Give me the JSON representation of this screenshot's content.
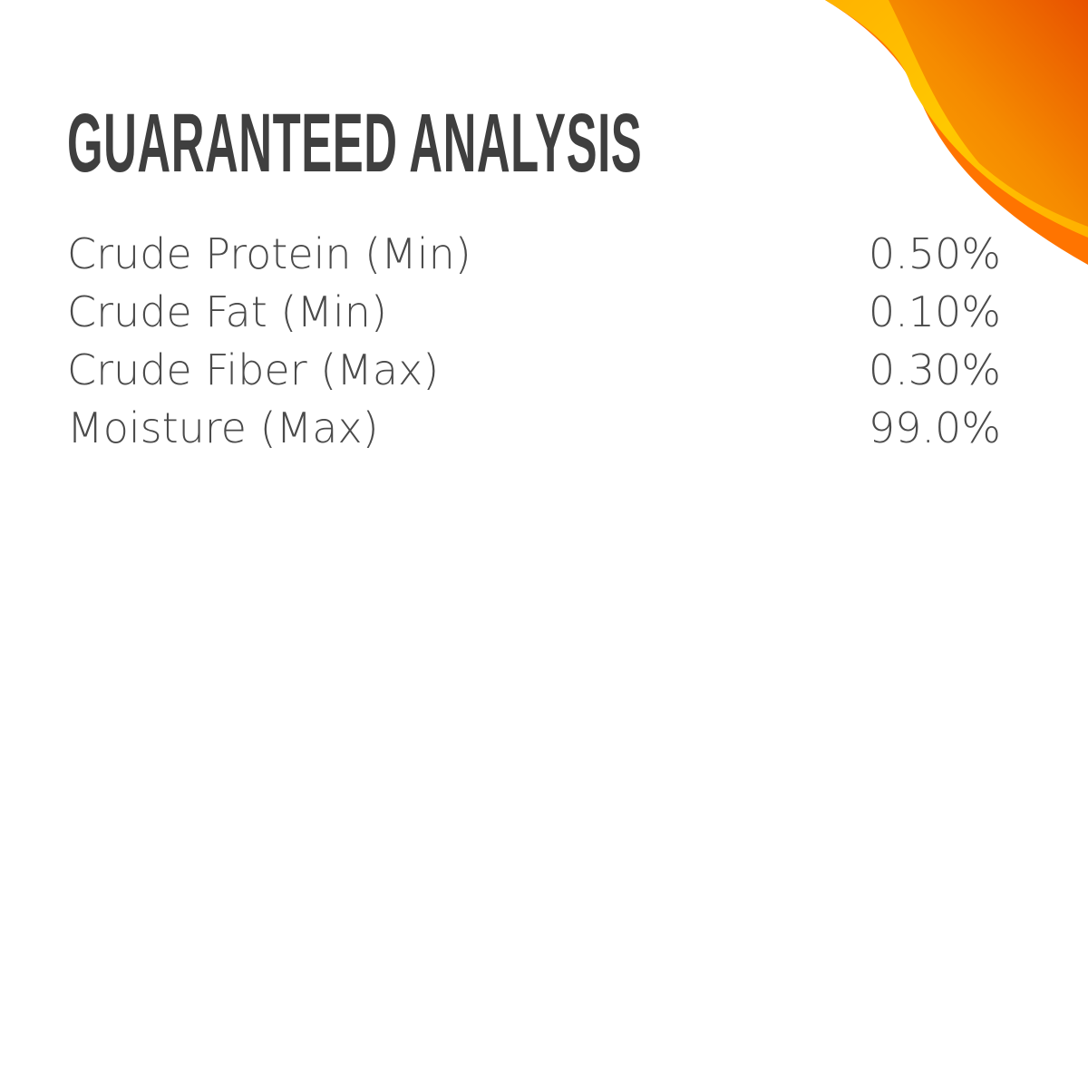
{
  "colors": {
    "text": "#4a4a4a",
    "orange_dark": "#e85a00",
    "orange": "#ff7a00",
    "yellow": "#ffc200"
  },
  "title": "GUARANTEED ANALYSIS",
  "rows": [
    {
      "label": "Crude Protein (Min)",
      "value": "0.50%"
    },
    {
      "label": "Crude Fat (Min)",
      "value": "0.10%"
    },
    {
      "label": "Crude Fiber (Max)",
      "value": "0.30%"
    },
    {
      "label": "Moisture (Max)",
      "value": "99.0%"
    }
  ]
}
